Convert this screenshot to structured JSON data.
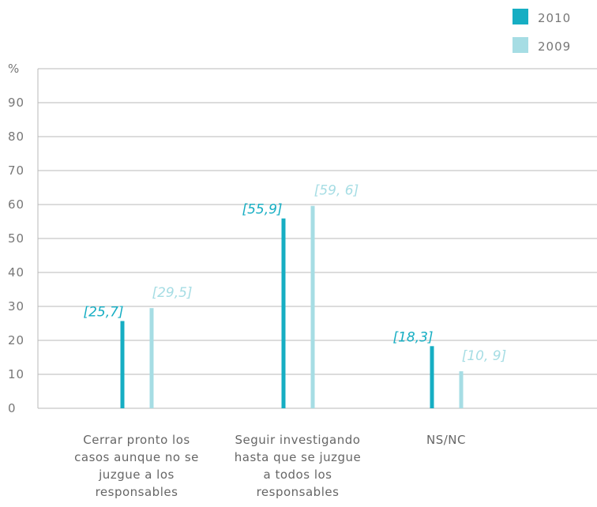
{
  "chart_data": {
    "type": "bar",
    "ylabel": "%",
    "ylim": [
      0,
      100
    ],
    "yticks": [
      0,
      10,
      20,
      30,
      40,
      50,
      60,
      70,
      80,
      90
    ],
    "grid": true,
    "legend_position": "top-right",
    "categories": [
      [
        "Cerrar pronto los",
        "casos aunque no se",
        "juzgue a los",
        "responsables"
      ],
      [
        "Seguir investigando",
        "hasta que se juzgue",
        "a todos los",
        "responsables"
      ],
      [
        "NS/NC"
      ]
    ],
    "series": [
      {
        "name": "2010",
        "color": "#16aec3",
        "values": [
          25.7,
          55.9,
          18.3
        ],
        "labels": [
          "[25,7]",
          "[55,9]",
          "[18,3]"
        ]
      },
      {
        "name": "2009",
        "color": "#a6dde4",
        "values": [
          29.5,
          59.6,
          10.9
        ],
        "labels": [
          "[29,5]",
          "[59, 6]",
          "[10, 9]"
        ]
      }
    ]
  }
}
